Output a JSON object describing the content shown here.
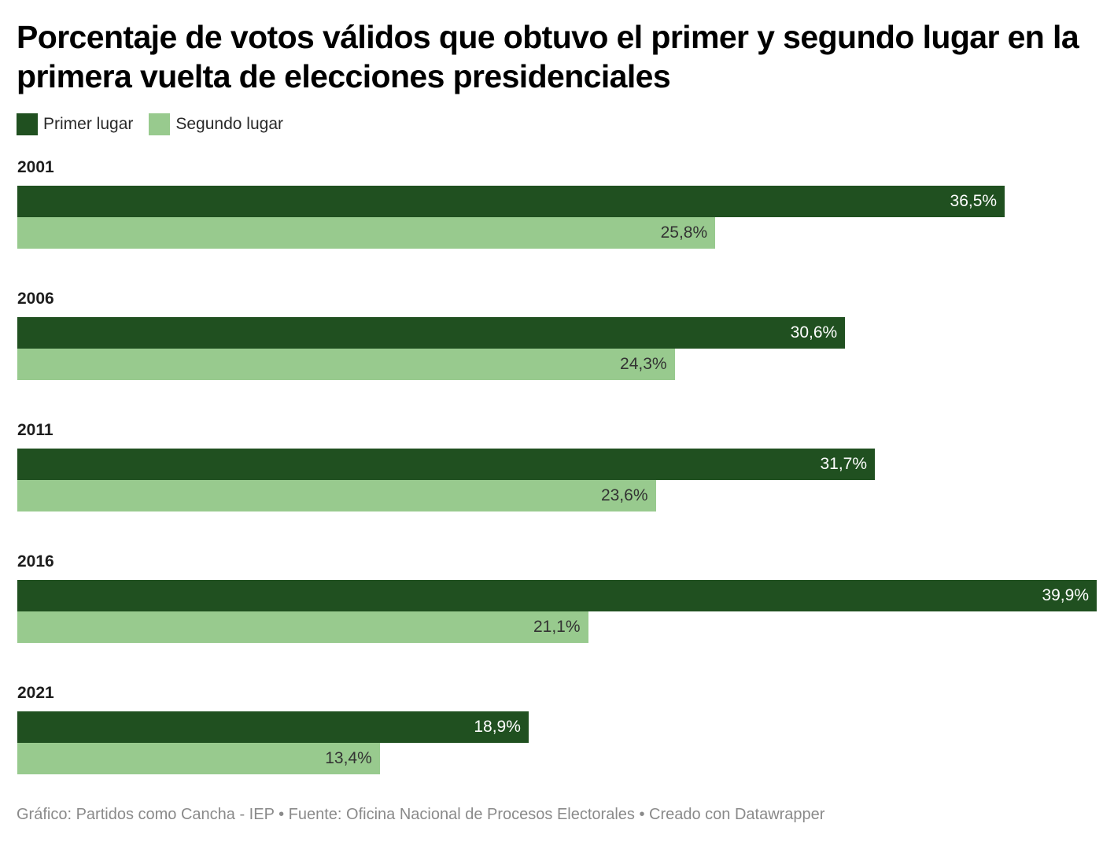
{
  "chart_data": {
    "type": "bar",
    "orientation": "horizontal",
    "title": "Porcentaje de votos válidos que obtuvo el primer y segundo lugar en la primera vuelta de elecciones presidenciales",
    "categories": [
      "2001",
      "2006",
      "2011",
      "2016",
      "2021"
    ],
    "series": [
      {
        "name": "Primer lugar",
        "color": "#205020",
        "label_color": "#ffffff",
        "values": [
          36.5,
          30.6,
          31.7,
          39.9,
          18.9
        ],
        "labels": [
          "36,5%",
          "30,6%",
          "31,7%",
          "39,9%",
          "18,9%"
        ]
      },
      {
        "name": "Segundo lugar",
        "color": "#98ca8e",
        "label_color": "#333333",
        "values": [
          25.8,
          24.3,
          23.6,
          21.1,
          13.4
        ],
        "labels": [
          "25,8%",
          "24,3%",
          "23,6%",
          "21,1%",
          "13,4%"
        ]
      }
    ],
    "xlabel": "",
    "ylabel": "",
    "xlim": [
      0,
      39.9
    ],
    "grid": false,
    "legend_position": "top-left"
  },
  "footer": {
    "text": "Gráfico: Partidos como Cancha - IEP • Fuente: Oficina Nacional de Procesos Electorales • Creado con Datawrapper"
  }
}
